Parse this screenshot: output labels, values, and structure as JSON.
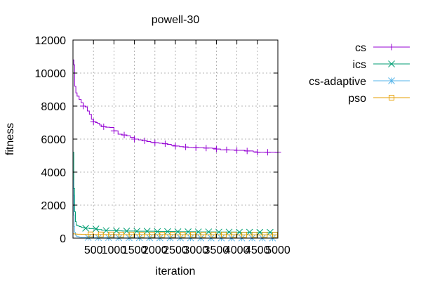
{
  "chart_data": {
    "type": "line",
    "title": "powell-30",
    "xlabel": "iteration",
    "ylabel": "fitness",
    "xlim": [
      0,
      5000
    ],
    "ylim": [
      0,
      12000
    ],
    "x_ticks": [
      500,
      1000,
      1500,
      2000,
      2500,
      3000,
      3500,
      4000,
      4500,
      5000
    ],
    "y_ticks": [
      0,
      2000,
      4000,
      6000,
      8000,
      10000,
      12000
    ],
    "grid": true,
    "legend_position": "outside-right",
    "series": [
      {
        "name": "cs",
        "color": "#9400d3",
        "marker": "plus",
        "points": [
          [
            1,
            10800
          ],
          [
            20,
            10500
          ],
          [
            40,
            9200
          ],
          [
            70,
            8800
          ],
          [
            100,
            8600
          ],
          [
            150,
            8400
          ],
          [
            200,
            8200
          ],
          [
            250,
            8000
          ],
          [
            300,
            7950
          ],
          [
            350,
            7700
          ],
          [
            400,
            7500
          ],
          [
            450,
            7200
          ],
          [
            500,
            7050
          ],
          [
            550,
            7000
          ],
          [
            600,
            6950
          ],
          [
            650,
            6850
          ],
          [
            700,
            6750
          ],
          [
            800,
            6720
          ],
          [
            900,
            6700
          ],
          [
            1000,
            6500
          ],
          [
            1100,
            6300
          ],
          [
            1200,
            6250
          ],
          [
            1300,
            6200
          ],
          [
            1400,
            6100
          ],
          [
            1500,
            6000
          ],
          [
            1600,
            5950
          ],
          [
            1700,
            5900
          ],
          [
            1800,
            5850
          ],
          [
            1900,
            5800
          ],
          [
            2000,
            5780
          ],
          [
            2100,
            5750
          ],
          [
            2200,
            5720
          ],
          [
            2300,
            5680
          ],
          [
            2400,
            5620
          ],
          [
            2500,
            5580
          ],
          [
            2600,
            5540
          ],
          [
            2700,
            5520
          ],
          [
            2800,
            5500
          ],
          [
            2900,
            5490
          ],
          [
            3000,
            5480
          ],
          [
            3200,
            5460
          ],
          [
            3400,
            5440
          ],
          [
            3500,
            5400
          ],
          [
            3600,
            5350
          ],
          [
            3800,
            5340
          ],
          [
            4000,
            5320
          ],
          [
            4200,
            5280
          ],
          [
            4400,
            5230
          ],
          [
            4500,
            5200
          ],
          [
            4700,
            5200
          ],
          [
            4900,
            5200
          ],
          [
            5000,
            5200
          ]
        ]
      },
      {
        "name": "ics",
        "color": "#009e73",
        "marker": "cross",
        "points": [
          [
            1,
            5200
          ],
          [
            20,
            3000
          ],
          [
            40,
            1600
          ],
          [
            60,
            1000
          ],
          [
            80,
            800
          ],
          [
            100,
            750
          ],
          [
            150,
            700
          ],
          [
            200,
            650
          ],
          [
            250,
            620
          ],
          [
            300,
            600
          ],
          [
            400,
            580
          ],
          [
            500,
            560
          ],
          [
            600,
            520
          ],
          [
            700,
            480
          ],
          [
            800,
            460
          ],
          [
            1000,
            440
          ],
          [
            1200,
            430
          ],
          [
            1500,
            420
          ],
          [
            2000,
            400
          ],
          [
            2500,
            390
          ],
          [
            3000,
            380
          ],
          [
            3500,
            370
          ],
          [
            4000,
            360
          ],
          [
            4500,
            355
          ],
          [
            5000,
            350
          ]
        ]
      },
      {
        "name": "cs-adaptive",
        "color": "#56b4e9",
        "marker": "star",
        "points": [
          [
            1,
            3500
          ],
          [
            10,
            2600
          ],
          [
            20,
            1400
          ],
          [
            30,
            700
          ],
          [
            40,
            350
          ],
          [
            60,
            180
          ],
          [
            80,
            120
          ],
          [
            100,
            90
          ],
          [
            150,
            60
          ],
          [
            200,
            50
          ],
          [
            300,
            40
          ],
          [
            500,
            30
          ],
          [
            1000,
            20
          ],
          [
            2000,
            15
          ],
          [
            3000,
            10
          ],
          [
            4000,
            8
          ],
          [
            5000,
            5
          ]
        ]
      },
      {
        "name": "pso",
        "color": "#e69f00",
        "marker": "box",
        "points": [
          [
            1,
            260
          ],
          [
            50,
            250
          ],
          [
            100,
            240
          ],
          [
            200,
            230
          ],
          [
            300,
            225
          ],
          [
            500,
            220
          ],
          [
            1000,
            215
          ],
          [
            1500,
            212
          ],
          [
            2000,
            210
          ],
          [
            2500,
            208
          ],
          [
            3000,
            206
          ],
          [
            3500,
            205
          ],
          [
            4000,
            204
          ],
          [
            4500,
            203
          ],
          [
            5000,
            202
          ]
        ]
      }
    ]
  }
}
